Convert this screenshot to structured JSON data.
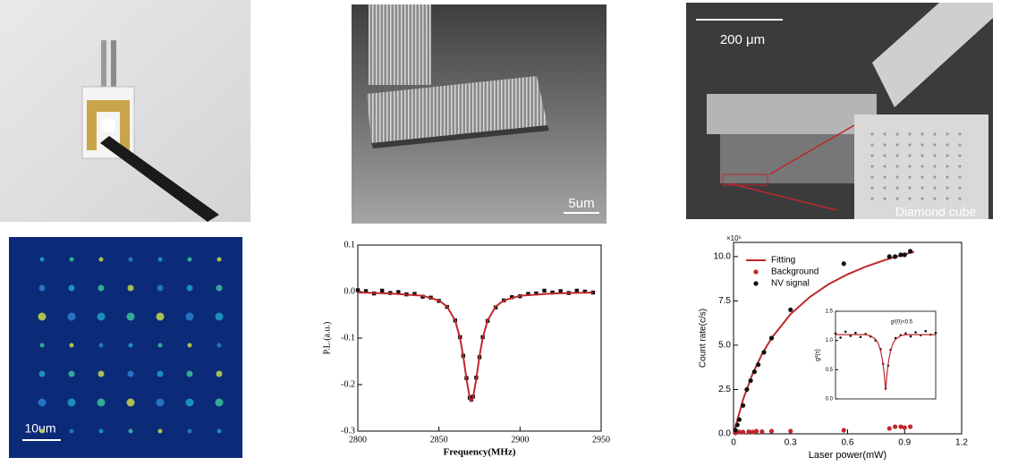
{
  "panels": {
    "sem_scale": "5um",
    "diamond_scale": "200 μm",
    "diamond_label": "Diamond cube",
    "pl_scale": "10um"
  },
  "chart_data": [
    {
      "type": "line",
      "xlabel": "Frequency(MHz)",
      "ylabel": "P.L.(a.u.)",
      "xlim": [
        2800,
        2950
      ],
      "xticks": [
        2800,
        2850,
        2900,
        2950
      ],
      "ylim": [
        -0.3,
        0.1
      ],
      "yticks": [
        0.1,
        {
          "value": 0,
          "label": "0.0"
        },
        -0.1,
        -0.2,
        -0.3
      ],
      "series": [
        {
          "type": "scatter",
          "color": "#111111",
          "x": [
            2800,
            2805,
            2810,
            2815,
            2820,
            2825,
            2830,
            2835,
            2840,
            2845,
            2850,
            2855,
            2860,
            2863,
            2865,
            2867,
            2869,
            2870,
            2871,
            2873,
            2875,
            2877,
            2880,
            2885,
            2890,
            2895,
            2900,
            2905,
            2910,
            2915,
            2920,
            2925,
            2930,
            2935,
            2940,
            2945
          ],
          "values": [
            0.003,
            0.001,
            -0.004,
            0.002,
            -0.003,
            -0.001,
            -0.006,
            -0.005,
            -0.011,
            -0.013,
            -0.02,
            -0.033,
            -0.062,
            -0.098,
            -0.138,
            -0.186,
            -0.228,
            -0.232,
            -0.226,
            -0.185,
            -0.141,
            -0.098,
            -0.063,
            -0.034,
            -0.019,
            -0.012,
            -0.01,
            -0.005,
            -0.004,
            0.002,
            -0.002,
            0.001,
            -0.003,
            0.002,
            0.0,
            -0.002
          ]
        },
        {
          "type": "line",
          "color": "#c0272d",
          "x": [
            2800,
            2820,
            2840,
            2850,
            2855,
            2860,
            2863,
            2865,
            2867,
            2869,
            2870,
            2871,
            2873,
            2875,
            2877,
            2880,
            2885,
            2890,
            2900,
            2920,
            2945
          ],
          "values": [
            -0.002,
            -0.004,
            -0.009,
            -0.019,
            -0.032,
            -0.062,
            -0.1,
            -0.139,
            -0.188,
            -0.229,
            -0.235,
            -0.229,
            -0.188,
            -0.139,
            -0.1,
            -0.062,
            -0.032,
            -0.019,
            -0.009,
            -0.004,
            -0.002
          ]
        }
      ]
    },
    {
      "type": "line",
      "xlabel": "Laser power(mW)",
      "ylabel": "Count rate(c/s)",
      "y_multiplier": "×10⁵",
      "xlim": [
        0,
        1.2
      ],
      "xticks": [
        0,
        0.3,
        0.6,
        0.9,
        1.2
      ],
      "ylim": [
        0,
        10.8
      ],
      "yticks": [
        {
          "value": 0,
          "label": "0.0"
        },
        2.5,
        {
          "value": 5,
          "label": "5.0"
        },
        7.5,
        {
          "value": 10,
          "label": "10.0"
        }
      ],
      "legend": "top-left",
      "series": [
        {
          "name": "Fitting",
          "type": "line",
          "color": "#c0272d",
          "x": [
            0,
            0.05,
            0.1,
            0.15,
            0.2,
            0.3,
            0.4,
            0.5,
            0.6,
            0.7,
            0.8,
            0.9,
            0.95
          ],
          "values": [
            0,
            1.93,
            3.38,
            4.5,
            5.4,
            6.75,
            7.71,
            8.44,
            9.0,
            9.45,
            9.82,
            10.13,
            10.26
          ]
        },
        {
          "name": "Background",
          "type": "scatter",
          "color": "#c0272d",
          "x": [
            0.01,
            0.03,
            0.05,
            0.08,
            0.1,
            0.12,
            0.15,
            0.2,
            0.3,
            0.58,
            0.82,
            0.85,
            0.88,
            0.9,
            0.93
          ],
          "values": [
            0.05,
            0.1,
            0.1,
            0.12,
            0.1,
            0.15,
            0.12,
            0.15,
            0.15,
            0.2,
            0.3,
            0.4,
            0.4,
            0.35,
            0.4
          ]
        },
        {
          "name": "NV signal",
          "type": "scatter",
          "color": "#111111",
          "x": [
            0.01,
            0.02,
            0.03,
            0.05,
            0.07,
            0.09,
            0.11,
            0.13,
            0.16,
            0.2,
            0.3,
            0.58,
            0.82,
            0.85,
            0.88,
            0.9,
            0.93
          ],
          "values": [
            0.2,
            0.5,
            0.8,
            1.6,
            2.5,
            3.0,
            3.5,
            3.9,
            4.6,
            5.4,
            7.0,
            9.6,
            10.0,
            10.0,
            10.1,
            10.1,
            10.3
          ]
        }
      ]
    },
    {
      "type": "line",
      "ylabel": "g²(τ)",
      "annotation": "g²(0)<0.5",
      "xlim": [
        -100,
        100
      ],
      "ylim": [
        0,
        1.5
      ],
      "yticks": [
        {
          "value": 0,
          "label": "0.0"
        },
        0.5,
        {
          "value": 1,
          "label": "1.0"
        },
        1.5
      ],
      "series": [
        {
          "type": "scatter",
          "color": "#111111",
          "x": [
            -100,
            -90,
            -80,
            -70,
            -60,
            -50,
            -40,
            -30,
            -20,
            -10,
            -5,
            0,
            5,
            10,
            20,
            30,
            40,
            50,
            60,
            70,
            80,
            90,
            100
          ],
          "values": [
            1.12,
            1.05,
            1.15,
            1.08,
            1.13,
            1.06,
            1.11,
            1.07,
            1.0,
            0.85,
            0.6,
            0.18,
            0.57,
            0.84,
            1.04,
            1.09,
            1.12,
            1.07,
            1.14,
            1.09,
            1.16,
            1.1,
            1.13
          ]
        },
        {
          "type": "line",
          "color": "#c0272d",
          "x": [
            -100,
            -40,
            -30,
            -20,
            -15,
            -10,
            -6,
            -3,
            0,
            3,
            6,
            10,
            15,
            20,
            30,
            40,
            100
          ],
          "values": [
            1.1,
            1.1,
            1.08,
            1.02,
            0.955,
            0.83,
            0.65,
            0.45,
            0.15,
            0.45,
            0.65,
            0.83,
            0.955,
            1.02,
            1.08,
            1.1,
            1.1
          ]
        }
      ]
    }
  ]
}
